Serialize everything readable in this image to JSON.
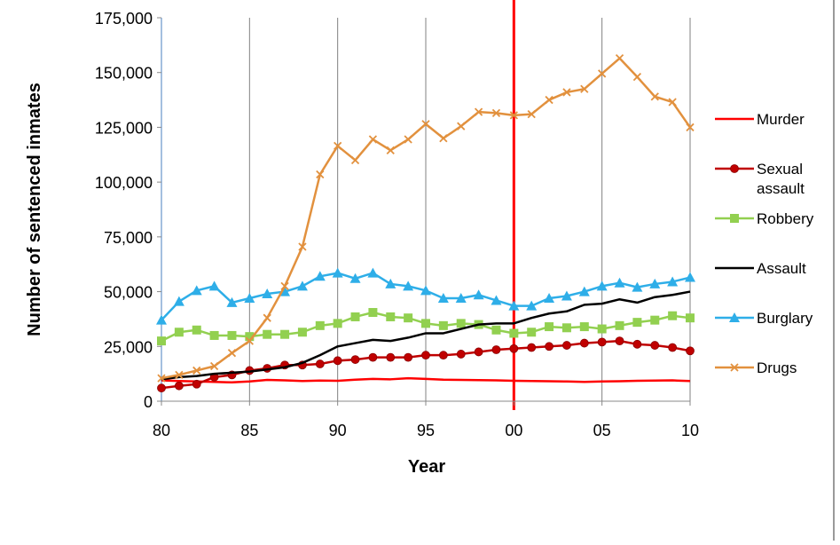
{
  "chart_data": {
    "type": "line",
    "title": "",
    "xlabel": "Year",
    "ylabel": "Number of sentenced inmates",
    "x": [
      1980,
      1981,
      1982,
      1983,
      1984,
      1985,
      1986,
      1987,
      1988,
      1989,
      1990,
      1991,
      1992,
      1993,
      1994,
      1995,
      1996,
      1997,
      1998,
      1999,
      2000,
      2001,
      2002,
      2003,
      2004,
      2005,
      2006,
      2007,
      2008,
      2009,
      2010
    ],
    "x_ticks": [
      1980,
      1985,
      1990,
      1995,
      2000,
      2005,
      2010
    ],
    "x_tick_labels": [
      "80",
      "85",
      "90",
      "95",
      "00",
      "05",
      "10"
    ],
    "xlim": [
      1980,
      2010
    ],
    "ylim": [
      0,
      175000
    ],
    "y_ticks": [
      0,
      25000,
      50000,
      75000,
      100000,
      125000,
      150000,
      175000
    ],
    "y_tick_labels": [
      "0",
      "25,000",
      "50,000",
      "75,000",
      "100,000",
      "125,000",
      "150,000",
      "175,000"
    ],
    "vertical_gridlines": [
      1980,
      1985,
      1990,
      1995,
      2000,
      2005,
      2010
    ],
    "highlight_line": {
      "x": 2000,
      "color": "#ff0000"
    },
    "legend_position": "right",
    "series": [
      {
        "name": "Murder",
        "color": "#ff0000",
        "marker": "none",
        "values": [
          9500,
          9200,
          9000,
          8800,
          8600,
          9000,
          9700,
          9500,
          9200,
          9400,
          9300,
          9800,
          10200,
          10000,
          10500,
          10200,
          9800,
          9700,
          9600,
          9500,
          9300,
          9200,
          9100,
          9000,
          8800,
          9000,
          9100,
          9300,
          9400,
          9500,
          9200
        ]
      },
      {
        "name": "Sexual assault",
        "color": "#c00000",
        "marker": "circle",
        "values": [
          6000,
          7000,
          7800,
          11000,
          12000,
          14000,
          15000,
          16500,
          16500,
          17000,
          18500,
          19000,
          20000,
          20000,
          20000,
          21000,
          21000,
          21500,
          22500,
          23500,
          24000,
          24500,
          25000,
          25500,
          26500,
          27000,
          27500,
          26000,
          25500,
          24500,
          23000
        ]
      },
      {
        "name": "Robbery",
        "color": "#92d050",
        "marker": "square",
        "values": [
          27500,
          31500,
          32500,
          30000,
          30000,
          29500,
          30500,
          30500,
          31500,
          34500,
          35500,
          38500,
          40500,
          38500,
          38000,
          35500,
          34500,
          35500,
          35000,
          32500,
          31000,
          31500,
          34000,
          33500,
          34000,
          33000,
          34500,
          36000,
          37000,
          39000,
          38000
        ]
      },
      {
        "name": "Assault",
        "color": "#000000",
        "marker": "none",
        "values": [
          10000,
          11000,
          11500,
          12500,
          13000,
          13500,
          14500,
          15500,
          17500,
          21000,
          25000,
          26500,
          28000,
          27500,
          29000,
          31000,
          31000,
          33000,
          35000,
          35500,
          35500,
          38000,
          40000,
          41000,
          44000,
          44500,
          46500,
          45000,
          47500,
          48500,
          50000
        ]
      },
      {
        "name": "Burglary",
        "color": "#2eaee8",
        "marker": "triangle",
        "values": [
          37000,
          45500,
          50500,
          52500,
          45000,
          47000,
          49000,
          50000,
          52500,
          57000,
          58500,
          56000,
          58500,
          53500,
          52500,
          50500,
          47000,
          47000,
          48500,
          46000,
          43500,
          43500,
          47000,
          48000,
          50000,
          52500,
          54000,
          52000,
          53500,
          54500,
          56500
        ]
      },
      {
        "name": "Drugs",
        "color": "#e2913e",
        "marker": "x",
        "values": [
          10500,
          12000,
          14000,
          16000,
          22000,
          27500,
          38000,
          52500,
          70500,
          103500,
          116500,
          110000,
          119500,
          114500,
          119500,
          126500,
          120000,
          125500,
          132000,
          131500,
          130500,
          131000,
          137500,
          141000,
          142500,
          149500,
          156500,
          148000,
          139000,
          136500,
          125000
        ]
      }
    ]
  },
  "legend": {
    "items": [
      {
        "line1": "Murder",
        "line2": ""
      },
      {
        "line1": "Sexual",
        "line2": "assault"
      },
      {
        "line1": "Robbery",
        "line2": ""
      },
      {
        "line1": "Assault",
        "line2": ""
      },
      {
        "line1": "Burglary",
        "line2": ""
      },
      {
        "line1": "Drugs",
        "line2": ""
      }
    ]
  }
}
